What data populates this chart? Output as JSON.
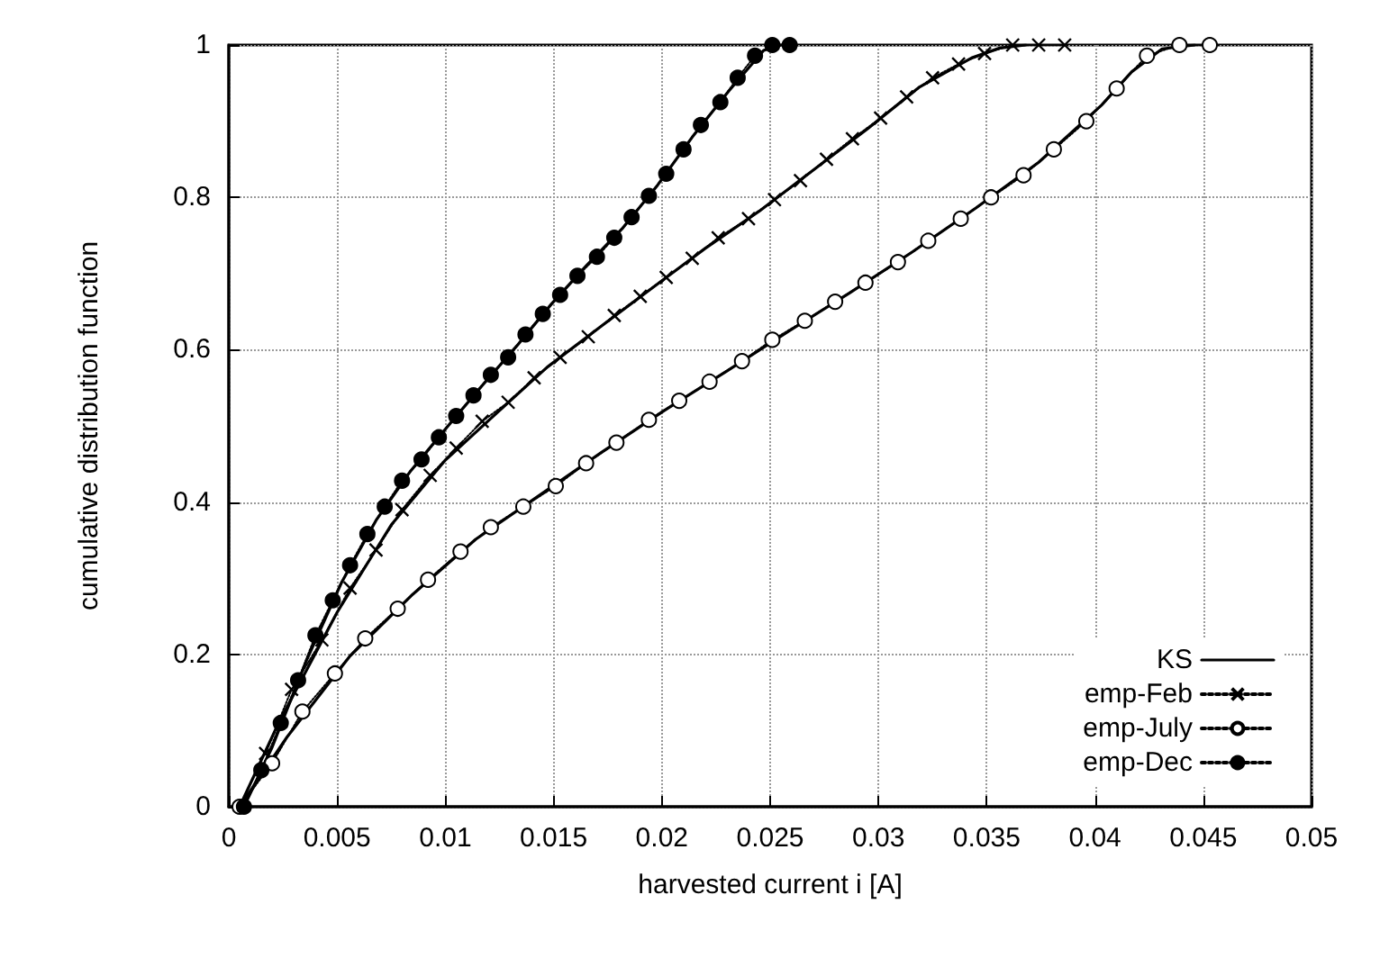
{
  "chart_data": {
    "type": "line",
    "xlabel": "harvested current i [A]",
    "ylabel": "cumulative distribution function",
    "xlim": [
      0,
      0.05
    ],
    "xticks": [
      0,
      0.005,
      0.01,
      0.015,
      0.02,
      0.025,
      0.03,
      0.035,
      0.04,
      0.045,
      0.05
    ],
    "ylim": [
      0,
      1
    ],
    "yticks": [
      0,
      0.2,
      0.4,
      0.6,
      0.8,
      1
    ],
    "grid": true,
    "legend": "bottom right",
    "series": [
      {
        "name": "KS",
        "color": "#000000",
        "line_style": "solid",
        "marker": "none",
        "x": [
          0.0005,
          0.0023,
          0.005,
          0.0075,
          0.01,
          0.0123,
          0.0147,
          0.0172,
          0.0196,
          0.022,
          0.0245,
          0.027,
          0.0295,
          0.0319,
          0.0343,
          0.0356,
          0.0368
        ],
        "values": [
          0,
          0.11,
          0.255,
          0.37,
          0.455,
          0.515,
          0.577,
          0.631,
          0.682,
          0.733,
          0.782,
          0.836,
          0.89,
          0.945,
          0.983,
          0.996,
          1
        ]
      },
      {
        "color": "#000000",
        "line_style": "solid",
        "marker": "none",
        "x": [
          0.0005,
          0.0027,
          0.0056,
          0.0085,
          0.0114,
          0.0143,
          0.0172,
          0.0201,
          0.023,
          0.0259,
          0.0287,
          0.0316,
          0.0345,
          0.0374,
          0.0403,
          0.0417,
          0.0431,
          0.0446
        ],
        "values": [
          0,
          0.092,
          0.198,
          0.279,
          0.351,
          0.408,
          0.465,
          0.52,
          0.572,
          0.625,
          0.675,
          0.729,
          0.786,
          0.846,
          0.921,
          0.965,
          0.995,
          1
        ]
      },
      {
        "color": "#000000",
        "line_style": "solid",
        "marker": "none",
        "x": [
          0.0007,
          0.002,
          0.0036,
          0.0052,
          0.0068,
          0.0084,
          0.0101,
          0.0117,
          0.0133,
          0.0149,
          0.0165,
          0.0182,
          0.0198,
          0.0214,
          0.0231,
          0.0247,
          0.0255
        ],
        "values": [
          0,
          0.078,
          0.193,
          0.294,
          0.376,
          0.441,
          0.499,
          0.553,
          0.605,
          0.66,
          0.71,
          0.76,
          0.816,
          0.879,
          0.94,
          0.993,
          1
        ]
      },
      {
        "name": "emp-Feb",
        "color": "#000000",
        "line_style": "dotted",
        "marker": "cross",
        "x": [
          0.0017,
          0.0029,
          0.0043,
          0.0056,
          0.0068,
          0.008,
          0.0093,
          0.0105,
          0.0117,
          0.0129,
          0.0141,
          0.0153,
          0.0166,
          0.0178,
          0.019,
          0.0202,
          0.0214,
          0.0226,
          0.024,
          0.0252,
          0.0264,
          0.0276,
          0.0288,
          0.0301,
          0.0313,
          0.0325,
          0.0337,
          0.0349,
          0.0362,
          0.0374,
          0.0386
        ],
        "values": [
          0.07,
          0.154,
          0.219,
          0.287,
          0.337,
          0.39,
          0.435,
          0.471,
          0.506,
          0.531,
          0.563,
          0.59,
          0.617,
          0.645,
          0.67,
          0.695,
          0.72,
          0.747,
          0.772,
          0.797,
          0.822,
          0.85,
          0.877,
          0.904,
          0.932,
          0.957,
          0.975,
          0.989,
          1,
          1,
          1
        ]
      },
      {
        "name": "emp-July",
        "color": "#000000",
        "colors": [
          "#ffffff",
          "#ffffff",
          "#ffffff",
          "#ffffff",
          "#ffffff",
          "#ffffff",
          "#ffffff",
          "#ffffff",
          "#ffffff",
          "#ffffff",
          "#ffffff",
          "#ffffff",
          "#ffffff",
          "#ffffff",
          "#ffffff",
          "#ffffff",
          "#ffffff",
          "#ffffff",
          "#ffffff",
          "#ffffff",
          "#ffffff",
          "#ffffff",
          "#ffffff",
          "#ffffff",
          "#ffffff",
          "#ffffff",
          "#ffffff",
          "#ffffff",
          "#ffffff",
          "#ffffff",
          "#ffffff",
          "#ffffff"
        ],
        "line_style": "dotted",
        "marker": "circle",
        "x": [
          0.0005,
          0.002,
          0.0034,
          0.0049,
          0.0063,
          0.0078,
          0.0092,
          0.0107,
          0.0121,
          0.0136,
          0.0151,
          0.0165,
          0.0179,
          0.0194,
          0.0208,
          0.0222,
          0.0237,
          0.0251,
          0.0266,
          0.028,
          0.0294,
          0.0309,
          0.0323,
          0.0338,
          0.0352,
          0.0367,
          0.0381,
          0.0396,
          0.041,
          0.0424,
          0.0439,
          0.0453
        ],
        "values": [
          0,
          0.057,
          0.125,
          0.175,
          0.221,
          0.26,
          0.298,
          0.335,
          0.367,
          0.394,
          0.421,
          0.451,
          0.478,
          0.508,
          0.533,
          0.558,
          0.585,
          0.613,
          0.638,
          0.663,
          0.688,
          0.715,
          0.743,
          0.772,
          0.8,
          0.829,
          0.863,
          0.9,
          0.943,
          0.986,
          1,
          1
        ]
      },
      {
        "name": "emp-Dec",
        "color": "#000000",
        "line_style": "dotted",
        "marker": "circle",
        "x": [
          0.0007,
          0.0015,
          0.0024,
          0.0032,
          0.004,
          0.0048,
          0.0056,
          0.0064,
          0.0072,
          0.008,
          0.0089,
          0.0097,
          0.0105,
          0.0113,
          0.0121,
          0.0129,
          0.0137,
          0.0145,
          0.0153,
          0.0161,
          0.017,
          0.0178,
          0.0186,
          0.0194,
          0.0202,
          0.021,
          0.0218,
          0.0227,
          0.0235,
          0.0243,
          0.0251,
          0.0259
        ],
        "values": [
          0,
          0.048,
          0.11,
          0.166,
          0.225,
          0.271,
          0.317,
          0.358,
          0.394,
          0.428,
          0.456,
          0.485,
          0.513,
          0.54,
          0.567,
          0.59,
          0.62,
          0.647,
          0.672,
          0.697,
          0.722,
          0.747,
          0.774,
          0.802,
          0.831,
          0.863,
          0.895,
          0.925,
          0.957,
          0.986,
          1,
          1
        ]
      }
    ]
  }
}
